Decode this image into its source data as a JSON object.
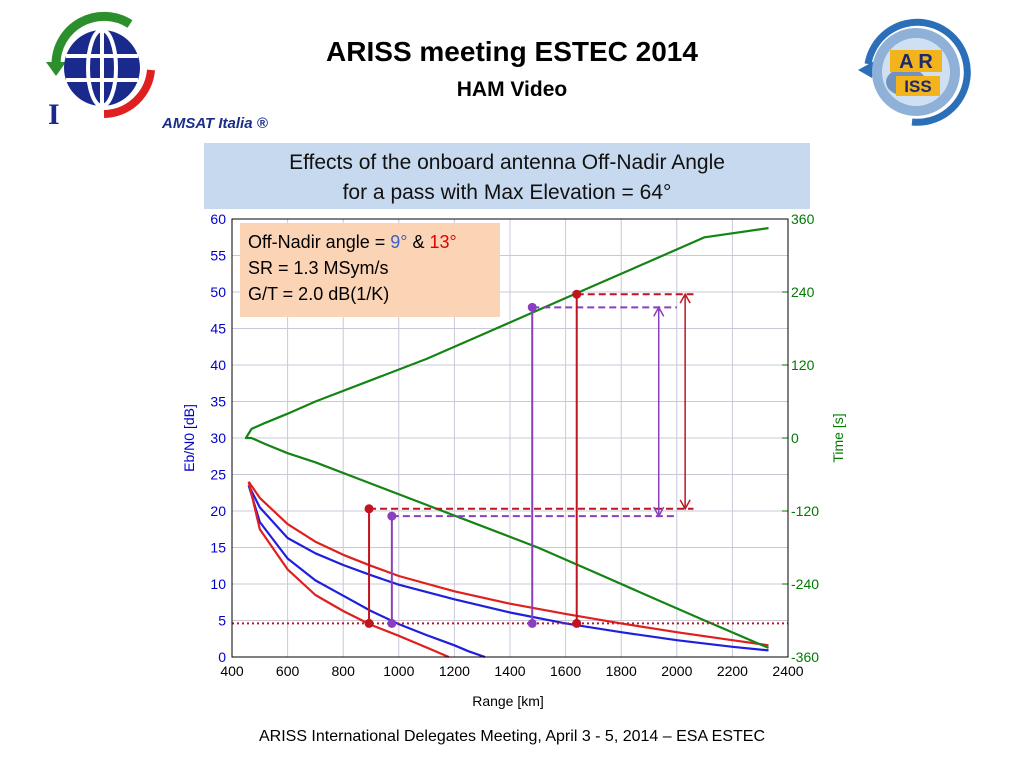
{
  "header": {
    "title": "ARISS meeting ESTEC 2014",
    "subtitle": "HAM Video"
  },
  "logos": {
    "left_caption": "AMSAT Italia ®",
    "left_letter": "I",
    "right_top_letters": "A R",
    "right_bottom_letters": "ISS"
  },
  "banner": {
    "line1": "Effects of the onboard antenna Off-Nadir Angle",
    "line2": "for a pass with Max Elevation = 64°"
  },
  "legend": {
    "line1_prefix": "Off-Nadir angle = ",
    "angle_a": "9°",
    "amp": " & ",
    "angle_b": "13°",
    "line2": "SR = 1.3 MSym/s",
    "line3": "G/T = 2.0 dB(1/K)"
  },
  "footer": "ARISS International Delegates Meeting, April 3 - 5, 2014 – ESA ESTEC",
  "colors": {
    "blue": "#1f1fdc",
    "red": "#e01f1f",
    "green": "#148414",
    "purple": "#8a3fbf",
    "darkred": "#c0141e",
    "axis_left": "#0000cc",
    "axis_right": "#007a00"
  },
  "chart_data": {
    "type": "line",
    "xlabel": "Range [km]",
    "ylabel": "Eb/N0 [dB]",
    "y2label": "Time [s]",
    "xlim": [
      400,
      2400
    ],
    "ylim": [
      0,
      60
    ],
    "y2lim": [
      -360,
      360
    ],
    "xticks": [
      "400",
      "600",
      "800",
      "1000",
      "1200",
      "1400",
      "1600",
      "1800",
      "2000",
      "2200",
      "2400"
    ],
    "yticks": [
      "0",
      "5",
      "10",
      "15",
      "20",
      "25",
      "30",
      "35",
      "40",
      "45",
      "50",
      "55",
      "60"
    ],
    "y2ticks": [
      "-360",
      "-240",
      "-120",
      "0",
      "120",
      "240",
      "360"
    ],
    "grid": true,
    "series": [
      {
        "name": "Eb/N0 9° (upper)",
        "color": "blue",
        "x": [
          460,
          500,
          600,
          700,
          800,
          900,
          1000,
          1200,
          1400,
          1600,
          1800,
          2000,
          2200,
          2330
        ],
        "y": [
          23.5,
          20.5,
          16.3,
          14.2,
          12.6,
          11.2,
          9.9,
          7.9,
          6.1,
          4.6,
          3.4,
          2.3,
          1.4,
          0.9
        ]
      },
      {
        "name": "Eb/N0 9° (lower)",
        "color": "blue",
        "x": [
          460,
          500,
          600,
          700,
          800,
          900,
          1000,
          1100,
          1200,
          1250,
          1310
        ],
        "y": [
          23.5,
          18.5,
          13.5,
          10.5,
          8.4,
          6.3,
          4.5,
          3.0,
          1.6,
          0.8,
          0
        ]
      },
      {
        "name": "Eb/N0 13° (upper)",
        "color": "red",
        "x": [
          460,
          500,
          600,
          700,
          800,
          900,
          1000,
          1200,
          1400,
          1600,
          1800,
          2000,
          2200,
          2330
        ],
        "y": [
          24,
          21.8,
          18.2,
          15.8,
          14.0,
          12.5,
          11.1,
          9.0,
          7.3,
          5.9,
          4.6,
          3.4,
          2.3,
          1.6
        ]
      },
      {
        "name": "Eb/N0 13° (lower)",
        "color": "red",
        "x": [
          460,
          500,
          600,
          700,
          800,
          900,
          1000,
          1100,
          1180
        ],
        "y": [
          24,
          17.5,
          12.0,
          8.5,
          6.3,
          4.4,
          2.9,
          1.3,
          0
        ]
      },
      {
        "name": "Time",
        "axis": "y2",
        "color": "green",
        "x": [
          2330,
          2100,
          1900,
          1700,
          1500,
          1300,
          1100,
          900,
          700,
          600,
          520,
          470,
          450,
          470,
          520,
          600,
          700,
          900,
          1100,
          1300,
          1500,
          1700,
          1900,
          2100,
          2330
        ],
        "y": [
          -345,
          -300,
          -260,
          -220,
          -180,
          -145,
          -110,
          -75,
          -40,
          -25,
          -10,
          0,
          0,
          15,
          25,
          40,
          60,
          95,
          130,
          170,
          210,
          250,
          290,
          330,
          345
        ]
      }
    ],
    "markers": [
      {
        "color": "darkred",
        "x": 893,
        "y_low": 4.6,
        "y_high": 20.3
      },
      {
        "color": "purple",
        "x": 975,
        "y_low": 4.6,
        "y_high": 19.3
      },
      {
        "color": "purple",
        "x": 1480,
        "y_low": 4.6,
        "y_high": 47.9
      },
      {
        "color": "darkred",
        "x": 1640,
        "y_low": 4.6,
        "y_high": 49.7
      }
    ],
    "reference_lines": [
      {
        "orientation": "h",
        "y": 4.6,
        "color": "darkred",
        "style": "dotted",
        "x_from": 400,
        "x_to": 2400
      },
      {
        "orientation": "h",
        "y": 20.3,
        "color": "darkred",
        "style": "dashed",
        "x_from": 893,
        "x_to": 2060
      },
      {
        "orientation": "h",
        "y": 19.3,
        "color": "purple",
        "style": "dashed",
        "x_from": 975,
        "x_to": 2000
      },
      {
        "orientation": "h",
        "y": 47.9,
        "color": "purple",
        "style": "dashed",
        "x_from": 1480,
        "x_to": 2000
      },
      {
        "orientation": "h",
        "y": 49.7,
        "color": "darkred",
        "style": "dashed",
        "x_from": 1640,
        "x_to": 2060
      }
    ],
    "arrows": [
      {
        "color": "purple",
        "x": 1935,
        "y_from": 19.3,
        "y_to": 47.9
      },
      {
        "color": "darkred",
        "x": 2030,
        "y_from": 20.3,
        "y_to": 49.7
      }
    ]
  }
}
